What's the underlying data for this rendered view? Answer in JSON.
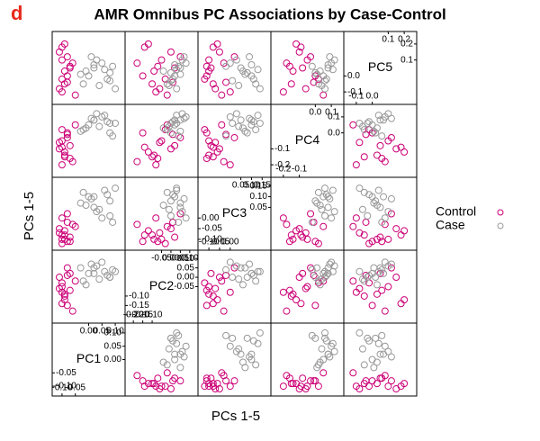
{
  "chart_data": {
    "type": "splom",
    "panel_label": "d",
    "title": "AMR Omnibus PC Associations by Case-Control",
    "xlabel": "PCs 1-5",
    "ylabel": "PCs 1-5",
    "variables": [
      {
        "name": "PC1",
        "lim": [
          -0.12,
          0.12
        ],
        "ticks": [
          {
            "value": -0.1,
            "label": "-0.10"
          },
          -0.05,
          {
            "value": 0,
            "label": "0.00"
          },
          0.05,
          {
            "value": 0.1,
            "label": "0.10"
          }
        ]
      },
      {
        "name": "PC2",
        "lim": [
          -0.22,
          0.12
        ],
        "ticks": [
          {
            "value": -0.2,
            "label": "-0.20"
          },
          -0.15,
          {
            "value": -0.1,
            "label": "-0.10"
          },
          -0.05,
          {
            "value": 0,
            "label": "0.00"
          },
          0.05,
          {
            "value": 0.1,
            "label": "0.10"
          }
        ]
      },
      {
        "name": "PC3",
        "lim": [
          -0.13,
          0.17
        ],
        "ticks": [
          {
            "value": -0.1,
            "label": "-0.10"
          },
          -0.05,
          {
            "value": 0,
            "label": "0.00"
          },
          0.05,
          {
            "value": 0.1,
            "label": "0.10"
          },
          0.15
        ]
      },
      {
        "name": "PC4",
        "lim": [
          -0.25,
          0.15
        ],
        "ticks": [
          -0.2,
          -0.1,
          {
            "value": 0,
            "label": "0.0"
          },
          0.1
        ]
      },
      {
        "name": "PC5",
        "lim": [
          -0.15,
          0.25
        ],
        "ticks": [
          -0.1,
          {
            "value": 0,
            "label": "0.0"
          },
          0.1,
          0.2
        ]
      }
    ],
    "series": [
      {
        "name": "Control",
        "color": "#cc0077",
        "values": [
          [
            -0.1,
            -0.09,
            -0.11,
            -0.08,
            -0.1,
            -0.07,
            -0.09,
            -0.1,
            -0.06,
            -0.11,
            -0.08,
            -0.09,
            -0.05,
            -0.1,
            -0.07,
            -0.08
          ],
          [
            -0.05,
            -0.1,
            0.0,
            -0.15,
            -0.08,
            0.02,
            -0.12,
            -0.03,
            -0.18,
            -0.06,
            0.05,
            -0.09,
            -0.02,
            -0.14,
            -0.07,
            0.01
          ],
          [
            -0.1,
            -0.08,
            -0.05,
            -0.11,
            0.0,
            -0.09,
            -0.06,
            -0.12,
            -0.03,
            -0.07,
            0.02,
            -0.1,
            -0.04,
            -0.08,
            -0.11,
            -0.02
          ],
          [
            -0.05,
            -0.15,
            -0.1,
            0.0,
            -0.2,
            -0.08,
            -0.12,
            0.02,
            -0.18,
            -0.06,
            -0.03,
            -0.14,
            0.05,
            -0.09,
            -0.16,
            -0.01
          ],
          [
            0.1,
            -0.05,
            0.15,
            0.0,
            -0.1,
            0.05,
            0.2,
            -0.02,
            0.08,
            -0.08,
            0.12,
            0.03,
            -0.12,
            0.18,
            0.06,
            -0.04
          ]
        ]
      },
      {
        "name": "Case",
        "color": "#999999",
        "values": [
          [
            0.0,
            0.02,
            -0.02,
            0.05,
            0.08,
            0.1,
            0.03,
            -0.01,
            0.07,
            0.09,
            0.01,
            0.04,
            0.06,
            -0.03,
            0.08,
            0.02
          ],
          [
            0.02,
            0.05,
            -0.02,
            0.08,
            0.0,
            0.03,
            0.06,
            -0.04,
            0.01,
            0.04,
            0.07,
            -0.01,
            0.03,
            0.05,
            0.0,
            0.02
          ],
          [
            0.1,
            0.05,
            0.12,
            0.0,
            0.08,
            0.14,
            0.03,
            0.06,
            0.11,
            -0.02,
            0.09,
            0.04,
            0.13,
            0.07,
            0.01,
            0.1
          ],
          [
            0.05,
            0.08,
            0.02,
            0.1,
            0.0,
            0.06,
            0.12,
            0.03,
            0.07,
            -0.02,
            0.09,
            0.04,
            0.11,
            0.01,
            0.06,
            0.08
          ],
          [
            0.0,
            0.05,
            -0.05,
            0.08,
            0.02,
            -0.08,
            0.1,
            0.03,
            -0.02,
            0.06,
            0.12,
            -0.06,
            0.04,
            0.01,
            -0.03,
            0.07
          ]
        ]
      }
    ]
  }
}
